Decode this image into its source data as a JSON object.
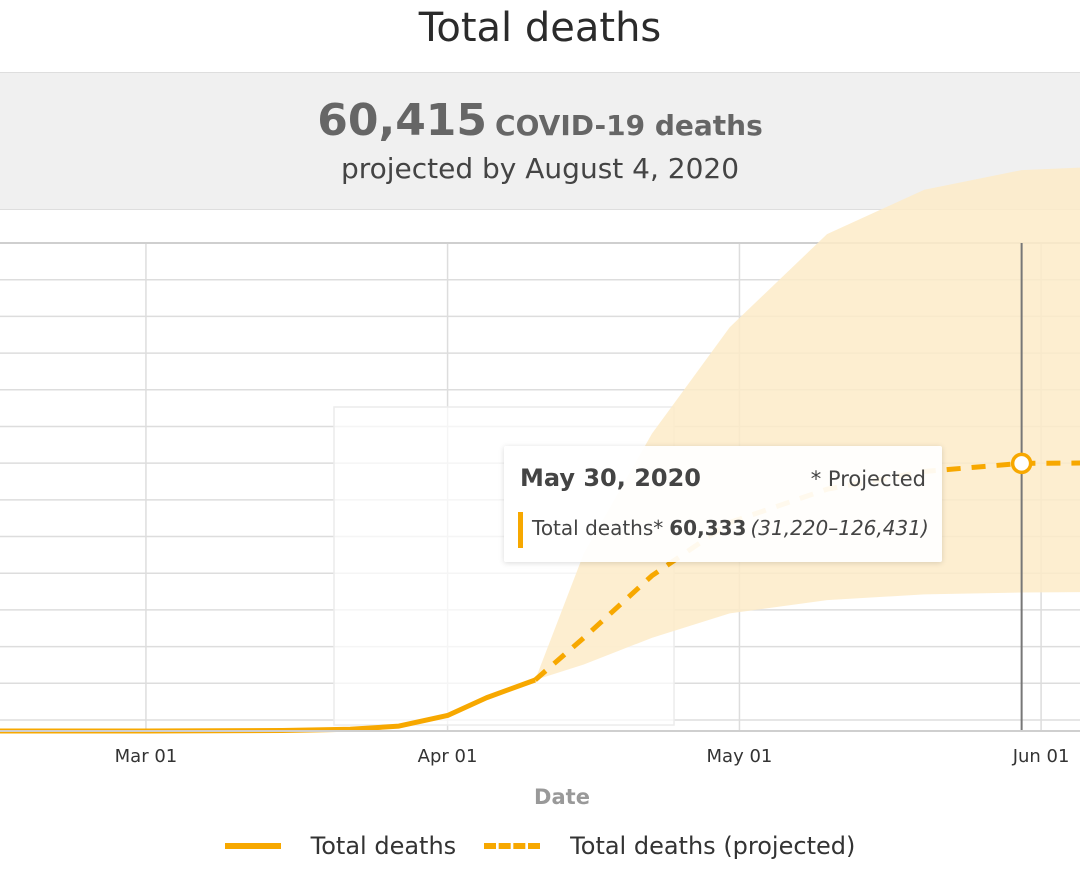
{
  "title": "Total deaths",
  "summary": {
    "number": "60,415",
    "unit": "COVID-19 deaths",
    "subtitle": "projected by August 4, 2020"
  },
  "tooltip": {
    "date": "May 30, 2020",
    "note": "* Projected",
    "series_label": "Total deaths*",
    "value": "60,333",
    "range": "(31,220–126,431)"
  },
  "legend": {
    "actual": "Total deaths",
    "projected": "Total deaths (projected)"
  },
  "colors": {
    "line": "#f7a800",
    "band": "#fdebc8",
    "grid": "#dddddd",
    "cursor": "#777777"
  },
  "chart_data": {
    "type": "line",
    "title": "Total deaths",
    "xlabel": "Date",
    "ylabel": "",
    "x_ticks": [
      "Mar 01",
      "Apr 01",
      "May 01",
      "Jun 01"
    ],
    "x_range": [
      "2020-02-15",
      "2020-06-05"
    ],
    "y_range": [
      0,
      110000
    ],
    "grid": true,
    "legend_position": "bottom",
    "series": [
      {
        "name": "Total deaths",
        "style": "solid",
        "points": [
          [
            "2020-02-15",
            0
          ],
          [
            "2020-03-01",
            0
          ],
          [
            "2020-03-15",
            100
          ],
          [
            "2020-03-22",
            400
          ],
          [
            "2020-03-27",
            1100
          ],
          [
            "2020-04-01",
            3500
          ],
          [
            "2020-04-05",
            7500
          ],
          [
            "2020-04-10",
            11500
          ]
        ]
      },
      {
        "name": "Total deaths (projected)",
        "style": "dashed",
        "points": [
          [
            "2020-04-10",
            11500
          ],
          [
            "2020-04-15",
            21000
          ],
          [
            "2020-04-22",
            35000
          ],
          [
            "2020-04-30",
            47000
          ],
          [
            "2020-05-10",
            54500
          ],
          [
            "2020-05-20",
            58500
          ],
          [
            "2020-05-30",
            60333
          ],
          [
            "2020-06-05",
            60400
          ]
        ]
      }
    ],
    "uncertainty_band": {
      "points": [
        [
          "2020-04-10",
          11500,
          11500
        ],
        [
          "2020-04-15",
          15000,
          40000
        ],
        [
          "2020-04-22",
          21000,
          67000
        ],
        [
          "2020-04-30",
          26500,
          91000
        ],
        [
          "2020-05-10",
          29500,
          112000
        ],
        [
          "2020-05-20",
          30800,
          122000
        ],
        [
          "2020-05-30",
          31220,
          126431
        ],
        [
          "2020-06-05",
          31300,
          127000
        ]
      ]
    },
    "highlight": {
      "date": "2020-05-30",
      "value": 60333,
      "low": 31220,
      "high": 126431
    }
  }
}
